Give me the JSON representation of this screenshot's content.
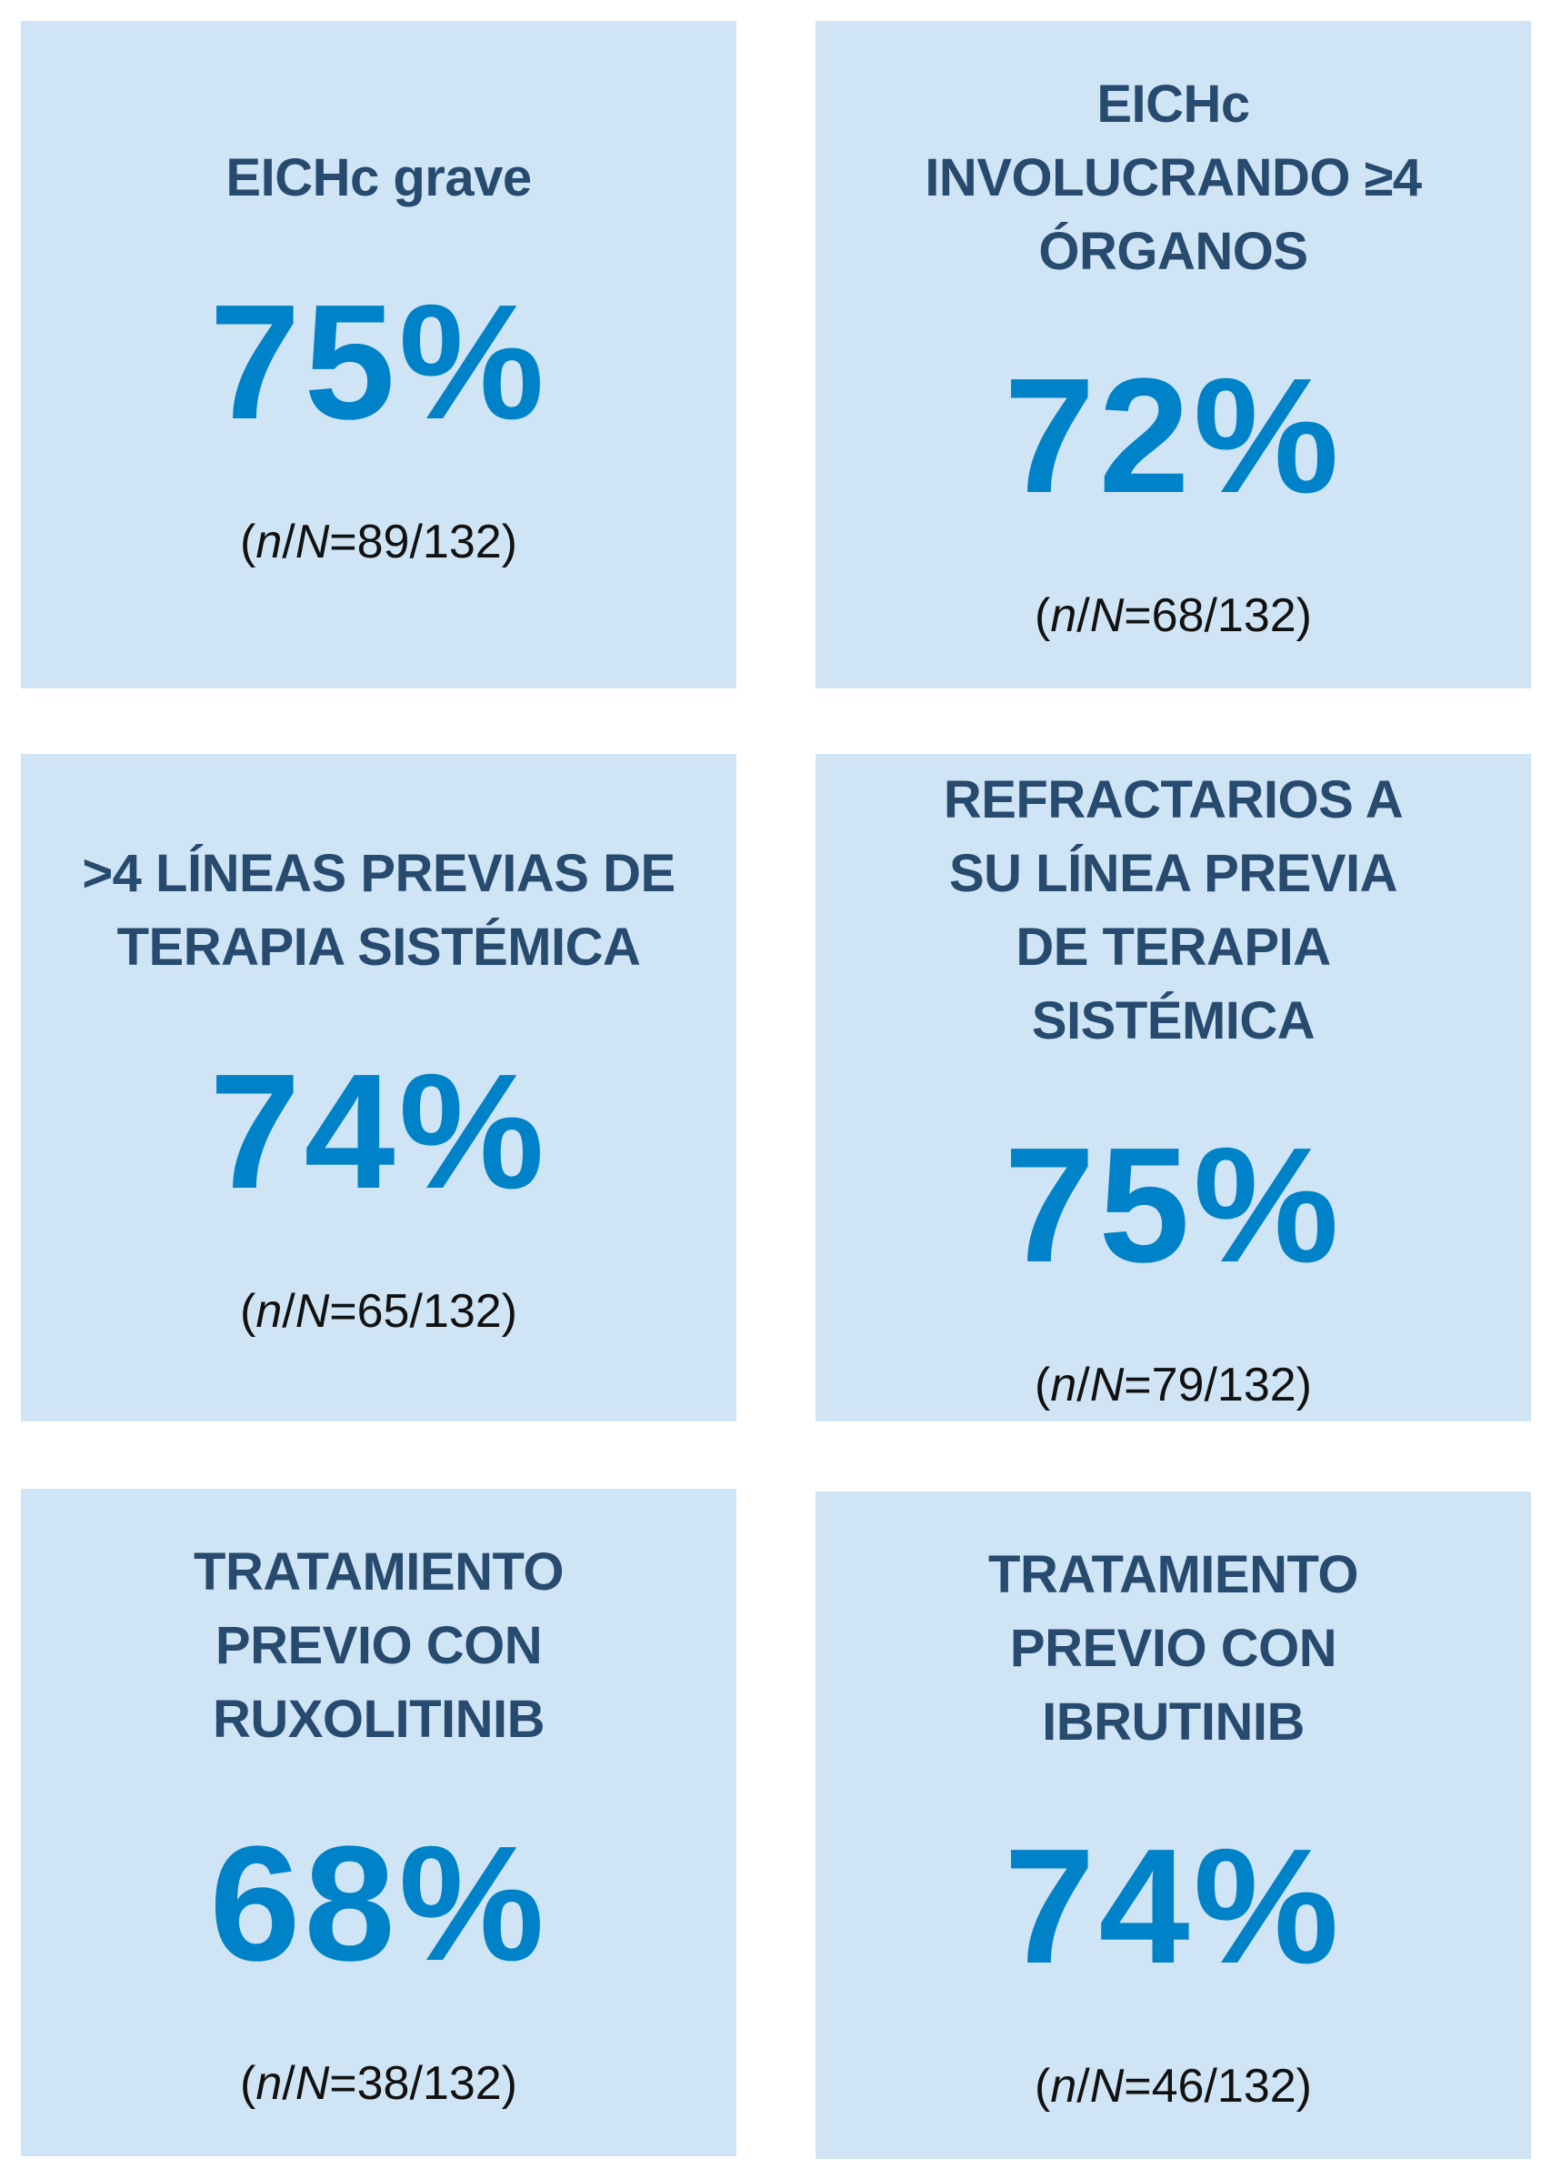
{
  "colors": {
    "card_bg": "#cfe4f4",
    "title": "#274a6f",
    "value": "#0082c8",
    "ratio": "#111111"
  },
  "ratio_prefix": {
    "open": "(",
    "n": "n",
    "slash": "/",
    "N": "N",
    "eq": "="
  },
  "cards": [
    {
      "title": "EICHc grave",
      "value": "75%",
      "ratio": "89/132)"
    },
    {
      "title": "EICHc INVOLUCRANDO ≥4 ÓRGANOS",
      "value": "72%",
      "ratio": "68/132)"
    },
    {
      "title": ">4 LÍNEAS PREVIAS DE TERAPIA SISTÉMICA",
      "value": "74%",
      "ratio": "65/132)"
    },
    {
      "title": "REFRACTARIOS A SU LÍNEA PREVIA DE TERAPIA SISTÉMICA",
      "value": "75%",
      "ratio": "79/132)"
    },
    {
      "title": "TRATAMIENTO PREVIO CON RUXOLITINIB",
      "value": "68%",
      "ratio": "38/132)"
    },
    {
      "title": "TRATAMIENTO PREVIO CON IBRUTINIB",
      "value": "74%",
      "ratio": "46/132)"
    }
  ]
}
